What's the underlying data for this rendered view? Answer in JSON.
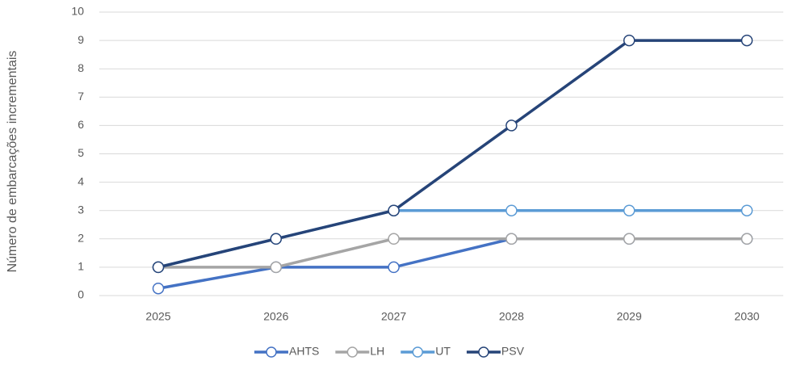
{
  "chart_data": {
    "type": "line",
    "y_label": "Número de embarcações incrementais",
    "categories": [
      "2025",
      "2026",
      "2027",
      "2028",
      "2029",
      "2030"
    ],
    "series": [
      {
        "name": "AHTS",
        "color": "#4472c4",
        "values": [
          0.25,
          1,
          1,
          2,
          2,
          2
        ]
      },
      {
        "name": "LH",
        "color": "#a5a5a5",
        "values": [
          1,
          1,
          2,
          2,
          2,
          2
        ]
      },
      {
        "name": "UT",
        "color": "#5b9bd5",
        "values": [
          1,
          2,
          3,
          3,
          3,
          3
        ]
      },
      {
        "name": "PSV",
        "color": "#264478",
        "values": [
          1,
          2,
          3,
          6,
          9,
          9
        ]
      }
    ],
    "ylim": [
      0,
      10
    ],
    "yticks": [
      0,
      1,
      2,
      3,
      4,
      5,
      6,
      7,
      8,
      9,
      10
    ],
    "grid": true,
    "legend": "bottom"
  }
}
